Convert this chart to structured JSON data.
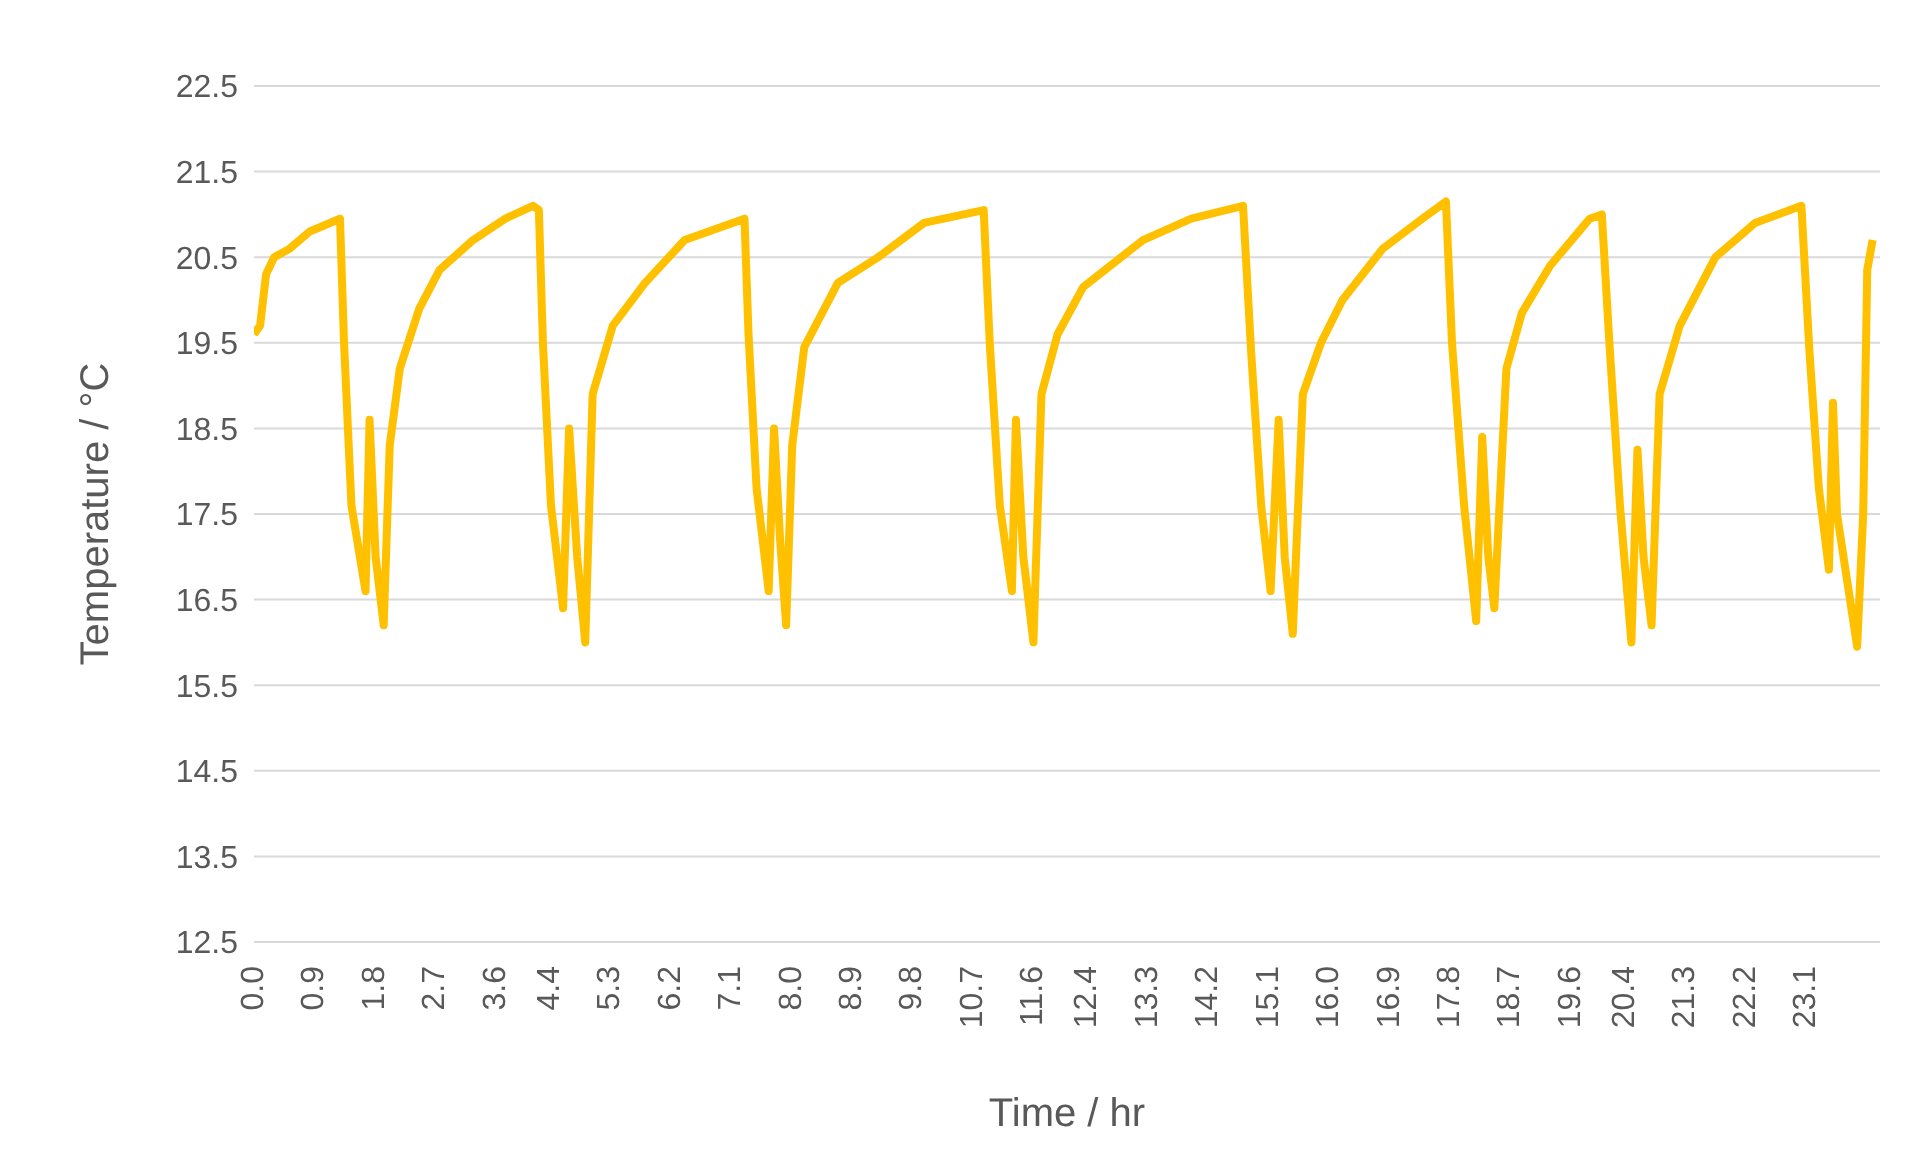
{
  "chart_data": {
    "type": "line",
    "xlabel": "Time / hr",
    "ylabel": "Temperature / °C",
    "x": [
      0,
      0.09,
      0.18,
      0.3,
      0.53,
      0.83,
      1.13,
      1.28,
      1.34,
      1.45,
      1.66,
      1.72,
      1.81,
      1.93,
      2.02,
      2.17,
      2.46,
      2.76,
      3.26,
      3.74,
      4.15,
      4.24,
      4.3,
      4.42,
      4.6,
      4.69,
      4.81,
      4.93,
      5.04,
      5.34,
      5.82,
      6.41,
      7.3,
      7.36,
      7.48,
      7.66,
      7.74,
      7.83,
      7.92,
      8.01,
      8.19,
      8.69,
      9.29,
      9.97,
      10.86,
      10.95,
      11.1,
      11.28,
      11.34,
      11.45,
      11.6,
      11.72,
      11.96,
      12.34,
      13.23,
      13.95,
      14.72,
      14.84,
      14.99,
      15.13,
      15.25,
      15.34,
      15.46,
      15.61,
      15.88,
      16.2,
      16.8,
      17.39,
      17.74,
      17.83,
      18.01,
      18.19,
      18.28,
      18.37,
      18.46,
      18.64,
      18.87,
      19.29,
      19.88,
      20.06,
      20.18,
      20.33,
      20.5,
      20.59,
      20.68,
      20.8,
      20.92,
      21.22,
      21.75,
      22.34,
      23.03,
      23.15,
      23.29,
      23.44,
      23.5,
      23.56,
      23.86,
      23.95,
      24.01,
      24.09
    ],
    "series": [
      {
        "color": "#ffc000",
        "values": [
          19.6,
          19.7,
          20.3,
          20.5,
          20.6,
          20.8,
          20.9,
          20.95,
          19.5,
          17.6,
          16.6,
          18.6,
          17.0,
          16.2,
          18.3,
          19.2,
          19.9,
          20.35,
          20.7,
          20.95,
          21.1,
          21.05,
          19.5,
          17.6,
          16.4,
          18.5,
          17.0,
          16.0,
          18.9,
          19.7,
          20.2,
          20.7,
          20.95,
          19.6,
          17.8,
          16.6,
          18.5,
          17.2,
          16.2,
          18.3,
          19.45,
          20.2,
          20.5,
          20.9,
          21.05,
          19.5,
          17.6,
          16.6,
          18.6,
          17.0,
          16.0,
          18.9,
          19.6,
          20.15,
          20.7,
          20.95,
          21.1,
          19.4,
          17.6,
          16.6,
          18.6,
          17.0,
          16.1,
          18.9,
          19.5,
          20.0,
          20.6,
          20.95,
          21.15,
          19.5,
          17.6,
          16.25,
          18.4,
          17.0,
          16.4,
          19.2,
          19.85,
          20.4,
          20.95,
          21.0,
          19.4,
          17.6,
          16.0,
          18.25,
          17.0,
          16.2,
          18.9,
          19.7,
          20.5,
          20.9,
          21.1,
          19.4,
          17.8,
          16.85,
          18.8,
          17.5,
          15.95,
          17.5,
          20.35,
          20.7
        ]
      }
    ],
    "xlim": [
      0,
      24.2
    ],
    "xticks": [
      {
        "value": 0,
        "label": "0.0"
      },
      0.9,
      1.8,
      2.7,
      3.6,
      4.4,
      5.3,
      6.2,
      7.1,
      {
        "value": 8,
        "label": "8.0"
      },
      8.9,
      9.8,
      10.7,
      11.6,
      12.4,
      13.3,
      14.2,
      15.1,
      {
        "value": 16,
        "label": "16.0"
      },
      16.9,
      17.8,
      18.7,
      19.6,
      20.4,
      21.3,
      22.2,
      23.1
    ],
    "ylim": [
      12.5,
      22.5
    ],
    "yticks": [
      12.5,
      13.5,
      14.5,
      15.5,
      16.5,
      17.5,
      18.5,
      19.5,
      20.5,
      21.5,
      22.5
    ],
    "grid": "y",
    "marker": "none",
    "line_style": "solid"
  }
}
